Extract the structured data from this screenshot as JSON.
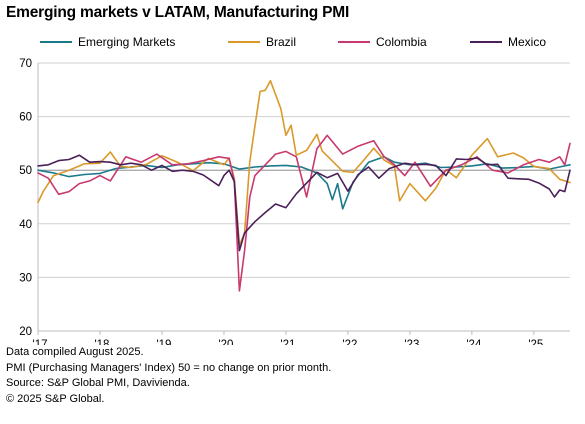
{
  "title": "Emerging markets v LATAM, Manufacturing PMI",
  "notes": [
    "Data compiled August 2025.",
    "PMI (Purchasing Managers' Index) 50 = no change on prior month.",
    "Source: S&P Global PMI, Davivienda.",
    "© 2025 S&P Global."
  ],
  "chart_data": {
    "type": "line",
    "title": "Emerging markets v LATAM, Manufacturing PMI",
    "xlabel": "",
    "ylabel": "",
    "ylim": [
      20,
      70
    ],
    "yticks": [
      20,
      30,
      40,
      50,
      60,
      70
    ],
    "xlim": [
      "2017-01",
      "2025-08"
    ],
    "xticks": [
      {
        "label": "'17",
        "date": "2017-01"
      },
      {
        "label": "'18",
        "date": "2018-01"
      },
      {
        "label": "'19",
        "date": "2019-01"
      },
      {
        "label": "'20",
        "date": "2020-01"
      },
      {
        "label": "'21",
        "date": "2021-01"
      },
      {
        "label": "'22",
        "date": "2022-01"
      },
      {
        "label": "'23",
        "date": "2023-01"
      },
      {
        "label": "'24",
        "date": "2024-01"
      },
      {
        "label": "'25",
        "date": "2025-01"
      }
    ],
    "grid": true,
    "legend": "top",
    "reference_line": 50,
    "series": [
      {
        "name": "Emerging Markets",
        "color": "#1b7a8a",
        "points": [
          [
            "2017-01",
            50.0
          ],
          [
            "2017-04",
            49.5
          ],
          [
            "2017-07",
            48.8
          ],
          [
            "2017-10",
            49.2
          ],
          [
            "2018-01",
            49.4
          ],
          [
            "2018-04",
            50.3
          ],
          [
            "2018-07",
            50.6
          ],
          [
            "2018-10",
            50.9
          ],
          [
            "2019-01",
            50.5
          ],
          [
            "2019-04",
            51.0
          ],
          [
            "2019-07",
            51.2
          ],
          [
            "2019-10",
            51.4
          ],
          [
            "2020-01",
            51.2
          ],
          [
            "2020-04",
            50.2
          ],
          [
            "2020-07",
            50.6
          ],
          [
            "2020-10",
            50.8
          ],
          [
            "2021-01",
            50.9
          ],
          [
            "2021-04",
            50.6
          ],
          [
            "2021-07",
            49.5
          ],
          [
            "2021-09",
            47.5
          ],
          [
            "2021-10",
            44.5
          ],
          [
            "2021-11",
            47.5
          ],
          [
            "2021-12",
            42.8
          ],
          [
            "2022-02",
            47.8
          ],
          [
            "2022-05",
            51.5
          ],
          [
            "2022-08",
            52.5
          ],
          [
            "2022-10",
            51.5
          ],
          [
            "2023-01",
            51.0
          ],
          [
            "2023-04",
            51.3
          ],
          [
            "2023-07",
            50.5
          ],
          [
            "2023-10",
            50.6
          ],
          [
            "2024-01",
            50.8
          ],
          [
            "2024-04",
            51.2
          ],
          [
            "2024-07",
            50.4
          ],
          [
            "2024-10",
            50.5
          ],
          [
            "2025-01",
            50.7
          ],
          [
            "2025-04",
            50.2
          ],
          [
            "2025-07",
            50.8
          ],
          [
            "2025-08",
            51.0
          ]
        ]
      },
      {
        "name": "Brazil",
        "color": "#d99a2b",
        "points": [
          [
            "2017-01",
            44.0
          ],
          [
            "2017-02",
            46.0
          ],
          [
            "2017-04",
            49.0
          ],
          [
            "2017-07",
            50.0
          ],
          [
            "2017-10",
            51.2
          ],
          [
            "2018-01",
            51.3
          ],
          [
            "2018-03",
            53.4
          ],
          [
            "2018-05",
            50.7
          ],
          [
            "2018-07",
            50.5
          ],
          [
            "2018-10",
            51.1
          ],
          [
            "2019-01",
            52.7
          ],
          [
            "2019-04",
            51.5
          ],
          [
            "2019-07",
            49.9
          ],
          [
            "2019-10",
            52.2
          ],
          [
            "2020-01",
            51.0
          ],
          [
            "2020-02",
            52.3
          ],
          [
            "2020-03",
            48.4
          ],
          [
            "2020-04",
            36.0
          ],
          [
            "2020-05",
            38.3
          ],
          [
            "2020-06",
            51.6
          ],
          [
            "2020-07",
            58.2
          ],
          [
            "2020-08",
            64.7
          ],
          [
            "2020-09",
            64.9
          ],
          [
            "2020-10",
            66.7
          ],
          [
            "2020-12",
            61.5
          ],
          [
            "2021-01",
            56.5
          ],
          [
            "2021-02",
            58.4
          ],
          [
            "2021-03",
            52.8
          ],
          [
            "2021-05",
            53.7
          ],
          [
            "2021-07",
            56.7
          ],
          [
            "2021-08",
            53.6
          ],
          [
            "2021-10",
            51.7
          ],
          [
            "2021-12",
            49.8
          ],
          [
            "2022-02",
            49.6
          ],
          [
            "2022-04",
            51.8
          ],
          [
            "2022-06",
            54.1
          ],
          [
            "2022-08",
            51.9
          ],
          [
            "2022-10",
            50.8
          ],
          [
            "2022-11",
            44.3
          ],
          [
            "2023-01",
            47.5
          ],
          [
            "2023-04",
            44.3
          ],
          [
            "2023-06",
            46.6
          ],
          [
            "2023-08",
            50.1
          ],
          [
            "2023-10",
            48.6
          ],
          [
            "2024-01",
            52.8
          ],
          [
            "2024-04",
            55.9
          ],
          [
            "2024-06",
            52.5
          ],
          [
            "2024-09",
            53.2
          ],
          [
            "2024-11",
            52.3
          ],
          [
            "2025-01",
            50.7
          ],
          [
            "2025-04",
            50.3
          ],
          [
            "2025-06",
            48.3
          ],
          [
            "2025-08",
            47.7
          ]
        ]
      },
      {
        "name": "Colombia",
        "color": "#c8396f",
        "points": [
          [
            "2017-01",
            49.5
          ],
          [
            "2017-03",
            48.5
          ],
          [
            "2017-05",
            45.5
          ],
          [
            "2017-07",
            46.0
          ],
          [
            "2017-09",
            47.5
          ],
          [
            "2017-11",
            48.0
          ],
          [
            "2018-01",
            49.0
          ],
          [
            "2018-03",
            48.0
          ],
          [
            "2018-06",
            52.5
          ],
          [
            "2018-09",
            51.5
          ],
          [
            "2018-12",
            53.0
          ],
          [
            "2019-03",
            51.0
          ],
          [
            "2019-06",
            51.2
          ],
          [
            "2019-09",
            51.8
          ],
          [
            "2019-12",
            52.5
          ],
          [
            "2020-02",
            52.2
          ],
          [
            "2020-03",
            48.0
          ],
          [
            "2020-04",
            27.5
          ],
          [
            "2020-05",
            35.0
          ],
          [
            "2020-06",
            45.0
          ],
          [
            "2020-07",
            49.0
          ],
          [
            "2020-09",
            51.0
          ],
          [
            "2020-11",
            53.0
          ],
          [
            "2021-01",
            53.5
          ],
          [
            "2021-03",
            52.5
          ],
          [
            "2021-05",
            45.0
          ],
          [
            "2021-07",
            54.0
          ],
          [
            "2021-09",
            56.5
          ],
          [
            "2021-12",
            53.0
          ],
          [
            "2022-03",
            54.5
          ],
          [
            "2022-06",
            55.5
          ],
          [
            "2022-08",
            52.5
          ],
          [
            "2022-10",
            51.0
          ],
          [
            "2022-12",
            49.0
          ],
          [
            "2023-02",
            51.5
          ],
          [
            "2023-05",
            47.0
          ],
          [
            "2023-08",
            50.0
          ],
          [
            "2023-11",
            51.0
          ],
          [
            "2024-02",
            52.5
          ],
          [
            "2024-05",
            50.0
          ],
          [
            "2024-08",
            49.5
          ],
          [
            "2024-11",
            51.0
          ],
          [
            "2025-02",
            52.0
          ],
          [
            "2025-04",
            51.5
          ],
          [
            "2025-06",
            52.5
          ],
          [
            "2025-07",
            51.0
          ],
          [
            "2025-08",
            55.0
          ]
        ]
      },
      {
        "name": "Mexico",
        "color": "#4b2058",
        "points": [
          [
            "2017-01",
            50.8
          ],
          [
            "2017-03",
            51.0
          ],
          [
            "2017-05",
            51.8
          ],
          [
            "2017-07",
            52.0
          ],
          [
            "2017-09",
            52.8
          ],
          [
            "2017-11",
            51.5
          ],
          [
            "2018-01",
            51.6
          ],
          [
            "2018-03",
            51.5
          ],
          [
            "2018-05",
            51.0
          ],
          [
            "2018-07",
            51.3
          ],
          [
            "2018-09",
            51.0
          ],
          [
            "2018-11",
            50.0
          ],
          [
            "2019-01",
            50.9
          ],
          [
            "2019-03",
            49.8
          ],
          [
            "2019-05",
            50.0
          ],
          [
            "2019-07",
            49.8
          ],
          [
            "2019-09",
            49.1
          ],
          [
            "2019-12",
            47.1
          ],
          [
            "2020-01",
            49.0
          ],
          [
            "2020-02",
            50.0
          ],
          [
            "2020-03",
            47.9
          ],
          [
            "2020-04",
            35.0
          ],
          [
            "2020-05",
            38.3
          ],
          [
            "2020-07",
            40.4
          ],
          [
            "2020-09",
            42.1
          ],
          [
            "2020-11",
            43.7
          ],
          [
            "2021-01",
            43.0
          ],
          [
            "2021-03",
            45.6
          ],
          [
            "2021-05",
            47.6
          ],
          [
            "2021-07",
            49.6
          ],
          [
            "2021-09",
            48.6
          ],
          [
            "2021-11",
            49.4
          ],
          [
            "2022-01",
            46.1
          ],
          [
            "2022-03",
            49.2
          ],
          [
            "2022-05",
            50.6
          ],
          [
            "2022-07",
            48.5
          ],
          [
            "2022-09",
            50.3
          ],
          [
            "2022-12",
            51.3
          ],
          [
            "2023-02",
            51.0
          ],
          [
            "2023-04",
            51.1
          ],
          [
            "2023-06",
            50.9
          ],
          [
            "2023-08",
            49.0
          ],
          [
            "2023-10",
            52.1
          ],
          [
            "2023-12",
            52.0
          ],
          [
            "2024-02",
            52.3
          ],
          [
            "2024-04",
            51.0
          ],
          [
            "2024-06",
            51.1
          ],
          [
            "2024-08",
            48.5
          ],
          [
            "2024-10",
            48.4
          ],
          [
            "2024-12",
            48.3
          ],
          [
            "2025-02",
            47.6
          ],
          [
            "2025-04",
            46.5
          ],
          [
            "2025-05",
            45.0
          ],
          [
            "2025-06",
            46.3
          ],
          [
            "2025-07",
            46.0
          ],
          [
            "2025-08",
            50.0
          ]
        ]
      }
    ]
  }
}
